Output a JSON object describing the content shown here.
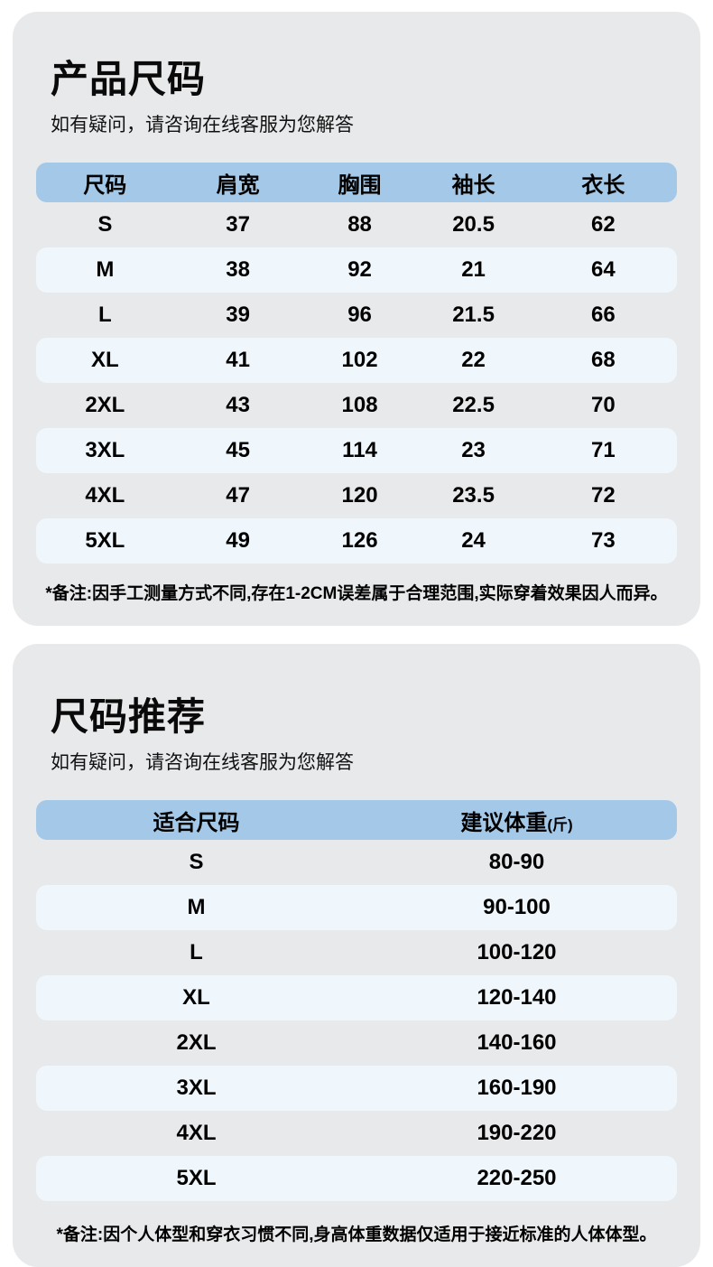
{
  "colors": {
    "page_bg": "#ffffff",
    "card_bg": "#e8e9eb",
    "table_header_bg": "#a4c8e8",
    "row_alt_bg": "#eff6fc",
    "text": "#000000"
  },
  "size_chart": {
    "title": "产品尺码",
    "subtitle": "如有疑问，请咨询在线客服为您解答",
    "columns": [
      "尺码",
      "肩宽",
      "胸围",
      "袖长",
      "衣长"
    ],
    "rows": [
      [
        "S",
        "37",
        "88",
        "20.5",
        "62"
      ],
      [
        "M",
        "38",
        "92",
        "21",
        "64"
      ],
      [
        "L",
        "39",
        "96",
        "21.5",
        "66"
      ],
      [
        "XL",
        "41",
        "102",
        "22",
        "68"
      ],
      [
        "2XL",
        "43",
        "108",
        "22.5",
        "70"
      ],
      [
        "3XL",
        "45",
        "114",
        "23",
        "71"
      ],
      [
        "4XL",
        "47",
        "120",
        "23.5",
        "72"
      ],
      [
        "5XL",
        "49",
        "126",
        "24",
        "73"
      ]
    ],
    "note": "*备注:因手工测量方式不同,存在1-2CM误差属于合理范围,实际穿着效果因人而异。"
  },
  "size_recommend": {
    "title": "尺码推荐",
    "subtitle": "如有疑问，请咨询在线客服为您解答",
    "columns": [
      "适合尺码",
      "建议体重"
    ],
    "unit": "(斤)",
    "rows": [
      [
        "S",
        "80-90"
      ],
      [
        "M",
        "90-100"
      ],
      [
        "L",
        "100-120"
      ],
      [
        "XL",
        "120-140"
      ],
      [
        "2XL",
        "140-160"
      ],
      [
        "3XL",
        "160-190"
      ],
      [
        "4XL",
        "190-220"
      ],
      [
        "5XL",
        "220-250"
      ]
    ],
    "note": "*备注:因个人体型和穿衣习惯不同,身高体重数据仅适用于接近标准的人体体型。"
  }
}
